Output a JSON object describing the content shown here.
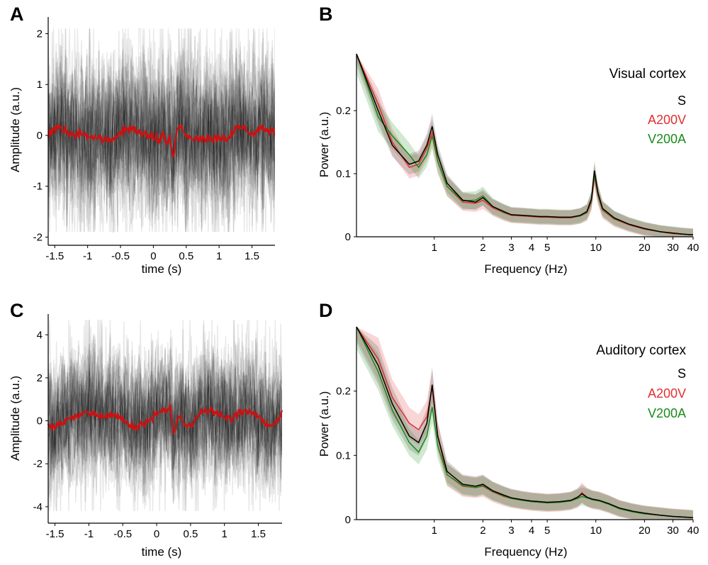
{
  "colors": {
    "trace": "#000000",
    "mean": "#cc1111",
    "S": "#000000",
    "A200V": "#e03030",
    "V200A": "#1a8a1a"
  },
  "chart_data": [
    {
      "panel": "A",
      "type": "line",
      "xlabel": "time (s)",
      "ylabel": "Amplitude (a.u.)",
      "xlim": [
        -1.6,
        1.85
      ],
      "ylim": [
        -2.05,
        2.3
      ],
      "xticks": [
        -1.5,
        -1,
        -0.5,
        0,
        0.5,
        1,
        1.5
      ],
      "xtick_labels": [
        "-1.5",
        "-1",
        "-0.5",
        "0",
        "0.5",
        "1",
        "1.5"
      ],
      "yticks": [
        2,
        1,
        0,
        -1,
        -2
      ],
      "ytick_labels": [
        "2",
        "1",
        "0",
        "-1",
        "-2"
      ],
      "mean_x": [
        -1.6,
        -1.5,
        -1.4,
        -1.3,
        -1.2,
        -1.1,
        -1.0,
        -0.9,
        -0.8,
        -0.7,
        -0.6,
        -0.5,
        -0.45,
        -0.4,
        -0.3,
        -0.2,
        -0.1,
        0.0,
        0.1,
        0.15,
        0.2,
        0.25,
        0.28,
        0.3,
        0.32,
        0.35,
        0.4,
        0.45,
        0.5,
        0.6,
        0.7,
        0.8,
        0.9,
        1.0,
        1.1,
        1.2,
        1.3,
        1.4,
        1.5,
        1.6,
        1.7,
        1.8,
        1.85
      ],
      "mean_y": [
        0.0,
        0.1,
        0.15,
        0.05,
        0.0,
        0.05,
        0.0,
        -0.05,
        -0.05,
        -0.1,
        -0.05,
        0.05,
        0.15,
        0.15,
        0.1,
        0.05,
        0.0,
        -0.05,
        -0.1,
        0.05,
        -0.2,
        0.0,
        -0.3,
        -0.45,
        -0.3,
        0.0,
        0.2,
        0.1,
        0.0,
        -0.05,
        -0.05,
        -0.1,
        -0.05,
        -0.05,
        -0.1,
        0.05,
        0.2,
        0.1,
        0.0,
        0.15,
        0.1,
        0.1,
        0.1
      ],
      "band_upper": 1.0,
      "band_lower": -1.0,
      "trace_range": [
        -1.9,
        2.1
      ]
    },
    {
      "panel": "B",
      "type": "line",
      "title": "Visual cortex",
      "xlabel": "Frequency (Hz)",
      "ylabel": "Power (a.u.)",
      "xscale": "log",
      "xlim": [
        0.33,
        40
      ],
      "ylim": [
        0,
        0.29
      ],
      "xticks": [
        1,
        2,
        3,
        4,
        5,
        10,
        20,
        30,
        40
      ],
      "xtick_labels": [
        "1",
        "2",
        "3",
        "4",
        "5",
        "10",
        "20",
        "30",
        "40"
      ],
      "yticks": [
        0,
        0.1,
        0.2
      ],
      "ytick_labels": [
        "0",
        "0.1",
        "0.2"
      ],
      "legend": [
        "S",
        "A200V",
        "V200A"
      ],
      "x": [
        0.33,
        0.45,
        0.55,
        0.7,
        0.8,
        0.9,
        0.97,
        1.05,
        1.2,
        1.5,
        1.8,
        2.0,
        2.3,
        2.7,
        3.0,
        3.5,
        4.0,
        4.5,
        5.0,
        6.0,
        7.0,
        8.0,
        8.8,
        9.4,
        9.8,
        10.3,
        11.0,
        13.0,
        16.0,
        20.0,
        25.0,
        30.0,
        35.0,
        40.0
      ],
      "series": [
        {
          "name": "S",
          "values": [
            0.3,
            0.2,
            0.145,
            0.115,
            0.12,
            0.145,
            0.175,
            0.13,
            0.085,
            0.058,
            0.055,
            0.062,
            0.048,
            0.04,
            0.035,
            0.034,
            0.033,
            0.032,
            0.032,
            0.031,
            0.031,
            0.034,
            0.04,
            0.06,
            0.105,
            0.07,
            0.045,
            0.03,
            0.02,
            0.013,
            0.008,
            0.006,
            0.004,
            0.003
          ],
          "band": 0.018
        },
        {
          "name": "A200V",
          "values": [
            0.31,
            0.21,
            0.15,
            0.11,
            0.115,
            0.14,
            0.165,
            0.12,
            0.08,
            0.055,
            0.053,
            0.058,
            0.046,
            0.038,
            0.034,
            0.033,
            0.032,
            0.031,
            0.031,
            0.03,
            0.03,
            0.033,
            0.038,
            0.055,
            0.095,
            0.065,
            0.042,
            0.028,
            0.019,
            0.012,
            0.008,
            0.005,
            0.004,
            0.003
          ],
          "band": 0.02
        },
        {
          "name": "V200A",
          "values": [
            0.29,
            0.19,
            0.16,
            0.13,
            0.11,
            0.13,
            0.16,
            0.12,
            0.08,
            0.057,
            0.058,
            0.065,
            0.048,
            0.039,
            0.035,
            0.034,
            0.033,
            0.032,
            0.032,
            0.031,
            0.031,
            0.033,
            0.039,
            0.058,
            0.1,
            0.068,
            0.044,
            0.029,
            0.02,
            0.013,
            0.008,
            0.006,
            0.004,
            0.003
          ],
          "band": 0.02
        }
      ]
    },
    {
      "panel": "C",
      "type": "line",
      "xlabel": "time (s)",
      "ylabel": "Amplitude (a.u.)",
      "xlim": [
        -1.6,
        1.85
      ],
      "ylim": [
        -4.5,
        4.9
      ],
      "xticks": [
        -1.5,
        -1,
        -0.5,
        0,
        0.5,
        1,
        1.5
      ],
      "xtick_labels": [
        "-1.5",
        "-1",
        "-0.5",
        "0",
        "0.5",
        "1",
        "1.5"
      ],
      "yticks": [
        4,
        2,
        0,
        -2,
        -4
      ],
      "ytick_labels": [
        "4",
        "2",
        "0",
        "-2",
        "-4"
      ],
      "mean_x": [
        -1.6,
        -1.5,
        -1.4,
        -1.3,
        -1.2,
        -1.1,
        -1.0,
        -0.9,
        -0.8,
        -0.7,
        -0.6,
        -0.5,
        -0.4,
        -0.3,
        -0.2,
        -0.1,
        0.0,
        0.1,
        0.15,
        0.2,
        0.22,
        0.25,
        0.3,
        0.35,
        0.4,
        0.5,
        0.6,
        0.7,
        0.8,
        0.9,
        1.0,
        1.1,
        1.2,
        1.3,
        1.4,
        1.5,
        1.6,
        1.7,
        1.8,
        1.85
      ],
      "mean_y": [
        -0.2,
        -0.3,
        -0.1,
        0.1,
        0.2,
        0.3,
        0.35,
        0.3,
        0.2,
        0.25,
        0.2,
        0.1,
        -0.2,
        -0.3,
        -0.2,
        0.1,
        0.3,
        0.5,
        0.3,
        0.8,
        0.2,
        -0.8,
        0.0,
        0.2,
        -0.1,
        -0.3,
        0.2,
        0.5,
        0.5,
        0.3,
        0.2,
        0.1,
        0.3,
        0.5,
        0.4,
        0.2,
        -0.1,
        -0.3,
        0.1,
        0.35
      ],
      "band_upper": 2.0,
      "band_lower": -2.0,
      "trace_range": [
        -4.2,
        4.7
      ]
    },
    {
      "panel": "D",
      "type": "line",
      "title": "Auditory cortex",
      "xlabel": "Frequency (Hz)",
      "ylabel": "Power (a.u.)",
      "xscale": "log",
      "xlim": [
        0.33,
        40
      ],
      "ylim": [
        0,
        0.3
      ],
      "xticks": [
        1,
        2,
        3,
        4,
        5,
        10,
        20,
        30,
        40
      ],
      "xtick_labels": [
        "1",
        "2",
        "3",
        "4",
        "5",
        "10",
        "20",
        "30",
        "40"
      ],
      "yticks": [
        0,
        0.1,
        0.2
      ],
      "ytick_labels": [
        "0",
        "0.1",
        "0.2"
      ],
      "legend": [
        "S",
        "A200V",
        "V200A"
      ],
      "x": [
        0.33,
        0.45,
        0.55,
        0.7,
        0.8,
        0.9,
        0.97,
        1.05,
        1.2,
        1.5,
        1.8,
        2.0,
        2.3,
        2.7,
        3.0,
        3.5,
        4.0,
        4.5,
        5.0,
        6.0,
        7.0,
        7.7,
        8.2,
        8.8,
        9.5,
        10.5,
        12.0,
        14.0,
        17.0,
        20.0,
        25.0,
        30.0,
        35.0,
        40.0
      ],
      "series": [
        {
          "name": "S",
          "values": [
            0.31,
            0.24,
            0.18,
            0.13,
            0.12,
            0.15,
            0.21,
            0.13,
            0.075,
            0.055,
            0.052,
            0.055,
            0.045,
            0.038,
            0.034,
            0.031,
            0.029,
            0.028,
            0.027,
            0.028,
            0.03,
            0.035,
            0.04,
            0.035,
            0.032,
            0.03,
            0.025,
            0.018,
            0.013,
            0.01,
            0.007,
            0.005,
            0.004,
            0.003
          ],
          "band": 0.022
        },
        {
          "name": "A200V",
          "values": [
            0.32,
            0.25,
            0.19,
            0.15,
            0.14,
            0.16,
            0.205,
            0.13,
            0.07,
            0.052,
            0.05,
            0.052,
            0.043,
            0.036,
            0.033,
            0.03,
            0.028,
            0.027,
            0.026,
            0.027,
            0.029,
            0.033,
            0.042,
            0.035,
            0.031,
            0.029,
            0.024,
            0.017,
            0.012,
            0.009,
            0.007,
            0.005,
            0.004,
            0.003
          ],
          "band": 0.024
        },
        {
          "name": "V200A",
          "values": [
            0.3,
            0.23,
            0.17,
            0.12,
            0.105,
            0.13,
            0.175,
            0.115,
            0.07,
            0.053,
            0.05,
            0.053,
            0.044,
            0.037,
            0.033,
            0.03,
            0.028,
            0.027,
            0.026,
            0.027,
            0.029,
            0.033,
            0.036,
            0.034,
            0.031,
            0.029,
            0.024,
            0.017,
            0.012,
            0.009,
            0.007,
            0.005,
            0.004,
            0.003
          ],
          "band": 0.022
        }
      ]
    }
  ]
}
